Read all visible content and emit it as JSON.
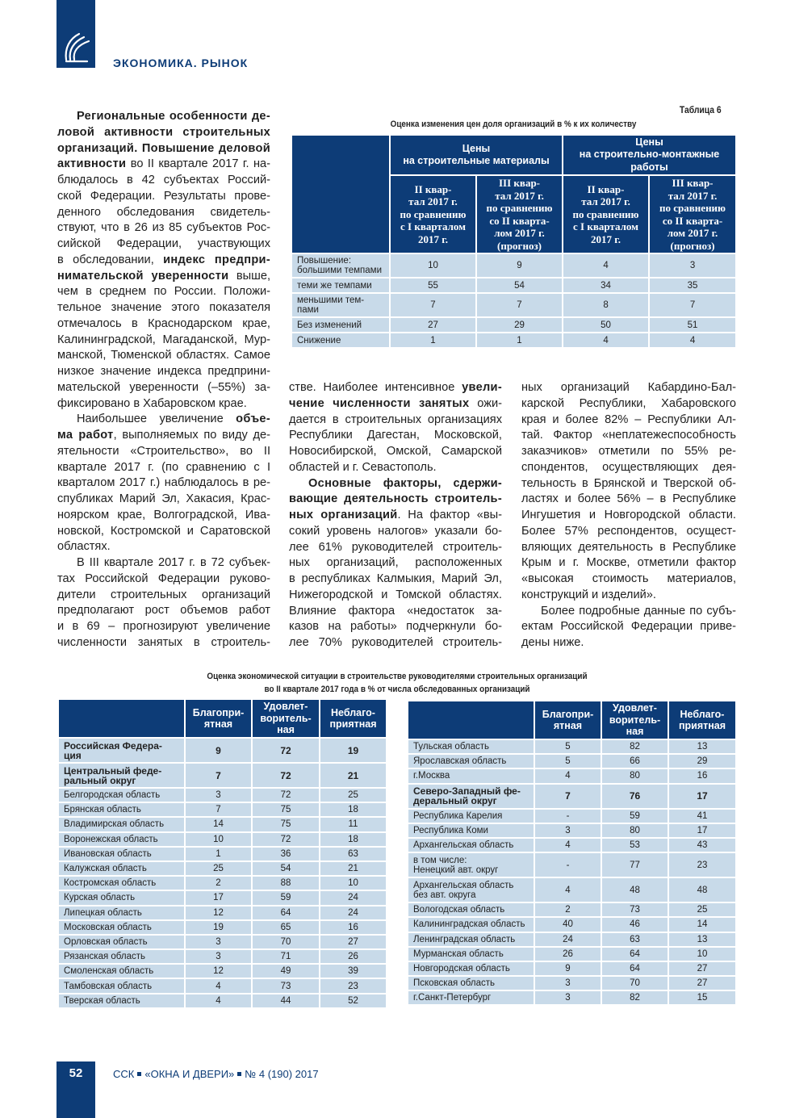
{
  "header": {
    "section": "ЭКОНОМИКА. РЫНОК",
    "logo_icon": "stylized-arcs-logo"
  },
  "footer": {
    "page": "52",
    "parts": [
      "ССК",
      "«ОКНА И ДВЕРИ»",
      "№ 4 (190) 2017"
    ]
  },
  "colors": {
    "brand_blue": "#0d3c77",
    "cell_blue": "#c8dae9"
  },
  "columns": {
    "left": [
      {
        "lines": [
          [
            {
              "t": "Региональные особенности де-",
              "b": true
            }
          ],
          [
            {
              "t": "ловой активности строительных",
              "b": true
            }
          ],
          [
            {
              "t": "организаций. Повышение деловой",
              "b": true
            }
          ],
          [
            {
              "t": "активности",
              "b": true
            },
            {
              "t": " во II квартале 2017 г. на-"
            }
          ],
          [
            {
              "t": "блюдалось в 42 субъектах Россий-"
            }
          ],
          [
            {
              "t": "ской Федерации. Результаты прове-"
            }
          ],
          [
            {
              "t": "денного обследования свидетель-"
            }
          ],
          [
            {
              "t": "ствуют, что в 26 из 85 субъектов Рос-"
            }
          ],
          [
            {
              "t": "сийской Федерации, участвующих"
            }
          ],
          [
            {
              "t": "в обследовании, "
            },
            {
              "t": "индекс предпри-",
              "b": true
            }
          ],
          [
            {
              "t": "нимательской уверенности",
              "b": true
            },
            {
              "t": " выше,"
            }
          ],
          [
            {
              "t": "чем в среднем по России. Положи-"
            }
          ],
          [
            {
              "t": "тельное значение этого показателя"
            }
          ],
          [
            {
              "t": "отмечалось в Краснодарском крае,"
            }
          ],
          [
            {
              "t": "Калининградской, Магаданской, Мур-"
            }
          ],
          [
            {
              "t": "манской, Тюменской областях. Самое"
            }
          ],
          [
            {
              "t": "низкое значение индекса предприни-"
            }
          ],
          [
            {
              "t": "мательской уверенности (–55%) за-"
            }
          ],
          [
            {
              "t": "фиксировано в Хабаровском крае."
            }
          ]
        ]
      },
      {
        "lines": [
          [
            {
              "t": "Наибольшее увеличение "
            },
            {
              "t": "объе-",
              "b": true
            }
          ],
          [
            {
              "t": "ма работ",
              "b": true
            },
            {
              "t": ", выполняемых по виду де-"
            }
          ],
          [
            {
              "t": "ятельности «Строительство», во II"
            }
          ],
          [
            {
              "t": "квартале 2017 г. (по сравнению с I"
            }
          ],
          [
            {
              "t": "кварталом 2017 г.) наблюдалось в ре-"
            }
          ],
          [
            {
              "t": "спубликах Марий Эл, Хакасия, Крас-"
            }
          ],
          [
            {
              "t": "ноярском крае, Волгоградской, Ива-"
            }
          ],
          [
            {
              "t": "новской, Костромской и Саратовской"
            }
          ],
          [
            {
              "t": "областях."
            }
          ]
        ]
      },
      {
        "continues": true,
        "lines": [
          [
            {
              "t": "В III квартале 2017 г. в 72 субъек-"
            }
          ],
          [
            {
              "t": "тах Российской Федерации руково-"
            }
          ],
          [
            {
              "t": "дители строительных организаций"
            }
          ],
          [
            {
              "t": "предполагают рост объемов работ"
            }
          ],
          [
            {
              "t": "и в 69 – прогнозируют увеличение"
            }
          ],
          [
            {
              "t": "численности занятых в строитель-"
            }
          ]
        ]
      }
    ],
    "mid": [
      {
        "noindent": true,
        "lines": [
          [
            {
              "t": "стве. Наиболее интенсивное "
            },
            {
              "t": "увели-",
              "b": true
            }
          ],
          [
            {
              "t": "чение численности занятых",
              "b": true
            },
            {
              "t": " ожи-"
            }
          ],
          [
            {
              "t": "дается в строительных организациях"
            }
          ],
          [
            {
              "t": "Республики Дагестан, Московской,"
            }
          ],
          [
            {
              "t": "Новосибирской, Омской, Самарской"
            }
          ],
          [
            {
              "t": "областей и г. Севастополь."
            }
          ]
        ]
      },
      {
        "continues": true,
        "lines": [
          [
            {
              "t": "Основные факторы, сдержи-",
              "b": true
            }
          ],
          [
            {
              "t": "вающие деятельность строитель-",
              "b": true
            }
          ],
          [
            {
              "t": "ных организаций",
              "b": true
            },
            {
              "t": ". На фактор «вы-"
            }
          ],
          [
            {
              "t": "сокий уровень налогов» указали бо-"
            }
          ],
          [
            {
              "t": "лее 61% руководителей строитель-"
            }
          ],
          [
            {
              "t": "ных организаций, расположенных"
            }
          ],
          [
            {
              "t": "в республиках Калмыкия, Марий Эл,"
            }
          ],
          [
            {
              "t": "Нижегородской и Томской областях."
            }
          ],
          [
            {
              "t": "Влияние фактора «недостаток за-"
            }
          ],
          [
            {
              "t": "казов на работы» подчеркнули бо-"
            }
          ],
          [
            {
              "t": "лее 70% руководителей строитель-"
            }
          ]
        ]
      }
    ],
    "right": [
      {
        "noindent": true,
        "lines": [
          [
            {
              "t": "ных организаций Кабардино-Бал-"
            }
          ],
          [
            {
              "t": "карской Республики, Хабаровского"
            }
          ],
          [
            {
              "t": "края и более 82% – Республики Ал-"
            }
          ],
          [
            {
              "t": "тай. Фактор «неплатежеспособность"
            }
          ],
          [
            {
              "t": "заказчиков» отметили по 55% ре-"
            }
          ],
          [
            {
              "t": "спондентов, осуществляющих дея-"
            }
          ],
          [
            {
              "t": "тельность в Брянской и Тверской об-"
            }
          ],
          [
            {
              "t": "ластях и более 56% – в Республике"
            }
          ],
          [
            {
              "t": "Ингушетия и Новгородской области."
            }
          ],
          [
            {
              "t": "Более 57% респондентов, осущест-"
            }
          ],
          [
            {
              "t": "вляющих деятельность в Республике"
            }
          ],
          [
            {
              "t": "Крым и г. Москве, отметили фактор"
            }
          ],
          [
            {
              "t": "«высокая стоимость материалов,"
            }
          ],
          [
            {
              "t": "конструкций и изделий»."
            }
          ]
        ]
      },
      {
        "lines": [
          [
            {
              "t": "Более подробные данные по субъ-"
            }
          ],
          [
            {
              "t": "ектам Российской Федерации приве-"
            }
          ],
          [
            {
              "t": "дены ниже."
            }
          ]
        ]
      }
    ]
  },
  "table6": {
    "label": "Таблица 6",
    "title": "Оценка изменения цен доля организаций в % к их количеству",
    "groups": [
      "Цены\nна строительные материалы",
      "Цены\nна строительно-монтажные\nработы"
    ],
    "subheaders": [
      "II квар-\nтал 2017 г.\nпо сравнению\nс I кварталом\n2017 г.",
      "III квар-\nтал 2017 г.\nпо сравнению\nсо II кварта-\nлом 2017 г.\n(прогноз)",
      "II квар-\nтал 2017 г.\nпо сравнению\nс I кварталом\n2017 г.",
      "III квар-\nтал 2017 г.\nпо сравнению\nсо II кварта-\nлом 2017 г.\n(прогноз)"
    ],
    "rows": [
      {
        "label": "Повышение:\nбольшими темпами",
        "values": [
          "10",
          "9",
          "4",
          "3"
        ],
        "h": 30
      },
      {
        "label": "теми же темпами",
        "values": [
          "55",
          "54",
          "34",
          "35"
        ],
        "h": 19
      },
      {
        "label": "меньшими тем-\nпами",
        "values": [
          "7",
          "7",
          "8",
          "7"
        ],
        "h": 30
      },
      {
        "label": "Без изменений",
        "values": [
          "27",
          "29",
          "50",
          "51"
        ],
        "h": 19
      },
      {
        "label": "Снижение",
        "values": [
          "1",
          "1",
          "4",
          "4"
        ],
        "h": 19
      }
    ]
  },
  "econ": {
    "title_line1": "Оценка экономической ситуации в строительстве руководителями строительных организаций",
    "title_line2": "во II квартале 2017 года в % от числа обследованных организаций",
    "headers": [
      "Благопри-\nятная",
      "Удовлет-\nворитель-\nная",
      "Неблаго-\nприятная"
    ],
    "left_rows": [
      {
        "label": "Российская Федера-\nция",
        "values": [
          "9",
          "72",
          "19"
        ],
        "bold": true,
        "h": 31
      },
      {
        "label": "Центральный феде-\nральный округ",
        "values": [
          "7",
          "72",
          "21"
        ],
        "bold": true,
        "h": 31
      },
      {
        "label": "Белгородская область",
        "values": [
          "3",
          "72",
          "25"
        ]
      },
      {
        "label": "Брянская область",
        "values": [
          "7",
          "75",
          "18"
        ]
      },
      {
        "label": "Владимирская область",
        "values": [
          "14",
          "75",
          "11"
        ]
      },
      {
        "label": "Воронежская область",
        "values": [
          "10",
          "72",
          "18"
        ]
      },
      {
        "label": "Ивановская область",
        "values": [
          "1",
          "36",
          "63"
        ]
      },
      {
        "label": "Калужская область",
        "values": [
          "25",
          "54",
          "21"
        ]
      },
      {
        "label": "Костромская область",
        "values": [
          "2",
          "88",
          "10"
        ]
      },
      {
        "label": "Курская область",
        "values": [
          "17",
          "59",
          "24"
        ]
      },
      {
        "label": "Липецкая область",
        "values": [
          "12",
          "64",
          "24"
        ]
      },
      {
        "label": "Московская область",
        "values": [
          "19",
          "65",
          "16"
        ]
      },
      {
        "label": "Орловская область",
        "values": [
          "3",
          "70",
          "27"
        ]
      },
      {
        "label": "Рязанская область",
        "values": [
          "3",
          "71",
          "26"
        ]
      },
      {
        "label": "Смоленская область",
        "values": [
          "12",
          "49",
          "39"
        ]
      },
      {
        "label": "Тамбовская область",
        "values": [
          "4",
          "73",
          "23"
        ]
      },
      {
        "label": "Тверская область",
        "values": [
          "4",
          "44",
          "52"
        ]
      }
    ],
    "right_rows": [
      {
        "label": "Тульская область",
        "values": [
          "5",
          "82",
          "13"
        ]
      },
      {
        "label": "Ярославская область",
        "values": [
          "5",
          "66",
          "29"
        ]
      },
      {
        "label": "г.Москва",
        "values": [
          "4",
          "80",
          "16"
        ]
      },
      {
        "label": "Северо-Западный фе-\nдеральный округ",
        "values": [
          "7",
          "76",
          "17"
        ],
        "bold": true,
        "h": 31
      },
      {
        "label": "Республика Карелия",
        "values": [
          "-",
          "59",
          "41"
        ]
      },
      {
        "label": "Республика Коми",
        "values": [
          "3",
          "80",
          "17"
        ]
      },
      {
        "label": "Архангельская область",
        "values": [
          "4",
          "53",
          "43"
        ]
      },
      {
        "label": "в том числе:\nНенецкий авт. округ",
        "values": [
          "-",
          "77",
          "23"
        ],
        "h": 31
      },
      {
        "label": "Архангельская область\nбез авт. округа",
        "values": [
          "4",
          "48",
          "48"
        ],
        "h": 31
      },
      {
        "label": "Вологодская область",
        "values": [
          "2",
          "73",
          "25"
        ]
      },
      {
        "label": "Калининградская область",
        "values": [
          "40",
          "46",
          "14"
        ]
      },
      {
        "label": "Ленинградская область",
        "values": [
          "24",
          "63",
          "13"
        ]
      },
      {
        "label": "Мурманская область",
        "values": [
          "26",
          "64",
          "10"
        ]
      },
      {
        "label": "Новгородская область",
        "values": [
          "9",
          "64",
          "27"
        ]
      },
      {
        "label": "Псковская область",
        "values": [
          "3",
          "70",
          "27"
        ]
      },
      {
        "label": "г.Санкт-Петербург",
        "values": [
          "3",
          "82",
          "15"
        ]
      }
    ]
  }
}
